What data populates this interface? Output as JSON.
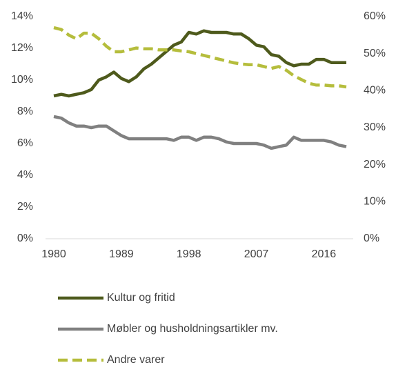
{
  "chart_data": {
    "type": "line",
    "x": [
      1980,
      1981,
      1982,
      1983,
      1984,
      1985,
      1986,
      1987,
      1988,
      1989,
      1990,
      1991,
      1992,
      1993,
      1994,
      1995,
      1996,
      1997,
      1998,
      1999,
      2000,
      2001,
      2002,
      2003,
      2004,
      2005,
      2006,
      2007,
      2008,
      2009,
      2010,
      2011,
      2012,
      2013,
      2014,
      2015,
      2016,
      2017,
      2018,
      2019
    ],
    "xlim": [
      1980,
      2019
    ],
    "xticks": [
      1980,
      1989,
      1998,
      2007,
      2016
    ],
    "ylim": [
      0,
      14
    ],
    "yticks": [
      {
        "value": 0,
        "label": "0%"
      },
      {
        "value": 2,
        "label": "2%"
      },
      {
        "value": 4,
        "label": "4%"
      },
      {
        "value": 6,
        "label": "6%"
      },
      {
        "value": 8,
        "label": "8%"
      },
      {
        "value": 10,
        "label": "10%"
      },
      {
        "value": 12,
        "label": "12%"
      },
      {
        "value": 14,
        "label": "14%"
      }
    ],
    "y2lim": [
      0,
      60
    ],
    "y2ticks": [
      {
        "value": 0,
        "label": "0%"
      },
      {
        "value": 10,
        "label": "10%"
      },
      {
        "value": 20,
        "label": "20%"
      },
      {
        "value": 30,
        "label": "30%"
      },
      {
        "value": 40,
        "label": "40%"
      },
      {
        "value": 50,
        "label": "50%"
      },
      {
        "value": 60,
        "label": "60%"
      }
    ],
    "legend": "bottom",
    "series": [
      {
        "name": "Kultur og fritid",
        "color": "#4e5a1c",
        "dash": false,
        "values": [
          9.0,
          9.1,
          9.0,
          9.1,
          9.2,
          9.4,
          10.0,
          10.2,
          10.5,
          10.1,
          9.9,
          10.2,
          10.7,
          11.0,
          11.4,
          11.8,
          12.2,
          12.4,
          13.0,
          12.9,
          13.1,
          13.0,
          13.0,
          13.0,
          12.9,
          12.9,
          12.6,
          12.2,
          12.1,
          11.6,
          11.5,
          11.1,
          10.9,
          11.0,
          11.0,
          11.3,
          11.3,
          11.1,
          11.1,
          11.1
        ]
      },
      {
        "name": "Møbler og husholdningsartikler mv.",
        "color": "#808080",
        "dash": false,
        "values": [
          7.7,
          7.6,
          7.3,
          7.1,
          7.1,
          7.0,
          7.1,
          7.1,
          6.8,
          6.5,
          6.3,
          6.3,
          6.3,
          6.3,
          6.3,
          6.3,
          6.2,
          6.4,
          6.4,
          6.2,
          6.4,
          6.4,
          6.3,
          6.1,
          6.0,
          6.0,
          6.0,
          6.0,
          5.9,
          5.7,
          5.8,
          5.9,
          6.4,
          6.2,
          6.2,
          6.2,
          6.2,
          6.1,
          5.9,
          5.8
        ]
      },
      {
        "name": "Andre varer",
        "color": "#b5bd3c",
        "dash": true,
        "axis": "y2",
        "values": [
          57,
          56.5,
          55,
          54,
          55.5,
          55.5,
          54,
          52,
          50.5,
          50.5,
          51,
          51.5,
          51.3,
          51.3,
          51,
          51,
          51,
          50.7,
          50.5,
          50,
          49.5,
          49,
          48.5,
          48,
          47.5,
          47.2,
          47,
          47,
          46.5,
          46,
          46.5,
          45.5,
          44,
          43,
          42,
          41.5,
          41.5,
          41.3,
          41.3,
          41
        ]
      }
    ]
  }
}
